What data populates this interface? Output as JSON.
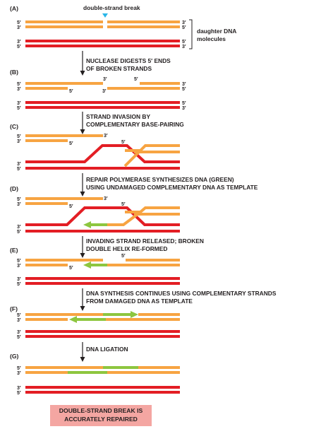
{
  "title": "double-strand break",
  "side_label": "daughter DNA\nmolecules",
  "panels": [
    "(A)",
    "(B)",
    "(C)",
    "(D)",
    "(E)",
    "(F)",
    "(G)"
  ],
  "steps": [
    [
      "NUCLEASE DIGESTS 5′ ENDS",
      "OF BROKEN STRANDS"
    ],
    [
      "STRAND INVASION BY",
      "COMPLEMENTARY BASE-PAIRING"
    ],
    [
      "REPAIR POLYMERASE SYNTHESIZES DNA (GREEN)",
      "USING UNDAMAGED COMPLEMENTARY DNA AS TEMPLATE"
    ],
    [
      "INVADING STRAND RELEASED; BROKEN",
      "DOUBLE HELIX RE-FORMED"
    ],
    [
      "DNA SYNTHESIS CONTINUES USING COMPLEMENTARY STRANDS",
      "FROM DAMAGED DNA AS TEMPLATE"
    ],
    [
      "DNA LIGATION"
    ]
  ],
  "ends": {
    "five": "5′",
    "three": "3′"
  },
  "result": "DOUBLE-STRAND BREAK IS\nACCURATELY REPAIRED",
  "colors": {
    "orange": "#f7a442",
    "red": "#e31e24",
    "green": "#8dc63f",
    "break_marker": "#29b6e8",
    "result_box": "#f4a6a2",
    "text": "#231f20"
  }
}
